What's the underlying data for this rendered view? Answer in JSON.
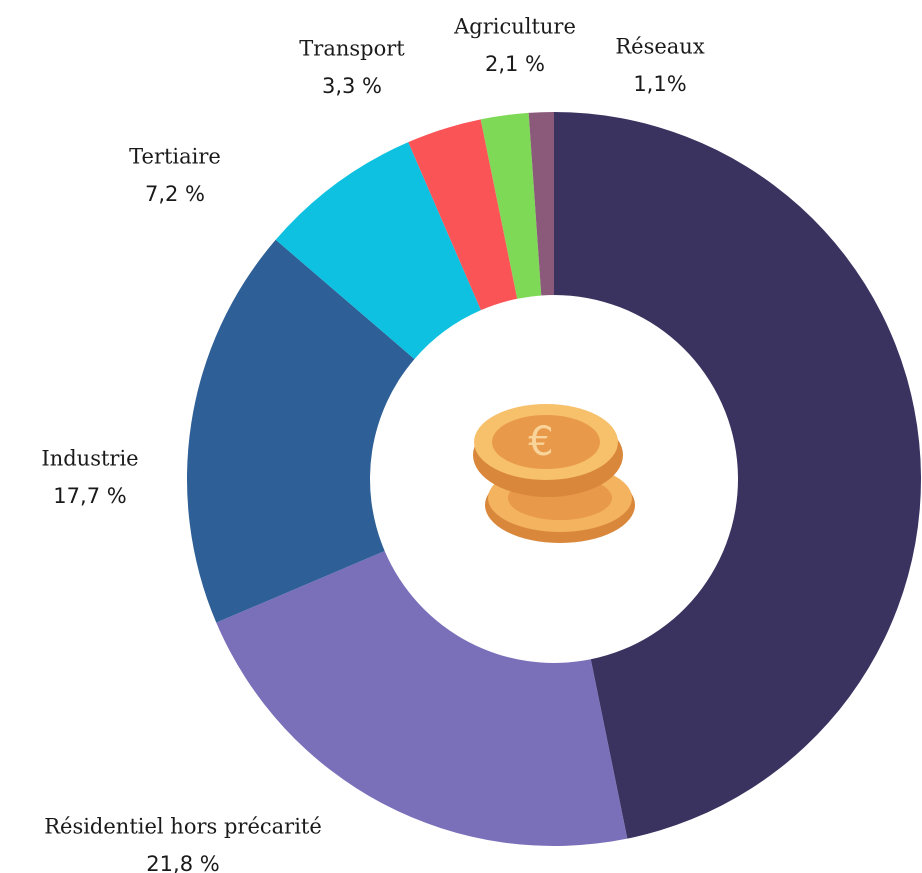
{
  "chart_data": {
    "type": "donut",
    "categories": [
      null,
      "Résidentiel hors précarité",
      "Industrie",
      "Tertiaire",
      "Transport",
      "Agriculture",
      "Réseaux"
    ],
    "values": [
      46.8,
      21.8,
      17.7,
      7.2,
      3.3,
      2.1,
      1.1
    ],
    "value_labels": [
      null,
      "21,8 %",
      "17,7 %",
      "7,2 %",
      "3,3 %",
      "2,1 %",
      "1,1%"
    ],
    "colors": [
      "#3a3360",
      "#7a70ba",
      "#2e5f96",
      "#0ec1e0",
      "#fb5457",
      "#7ed957",
      "#8b5a7a"
    ]
  }
}
